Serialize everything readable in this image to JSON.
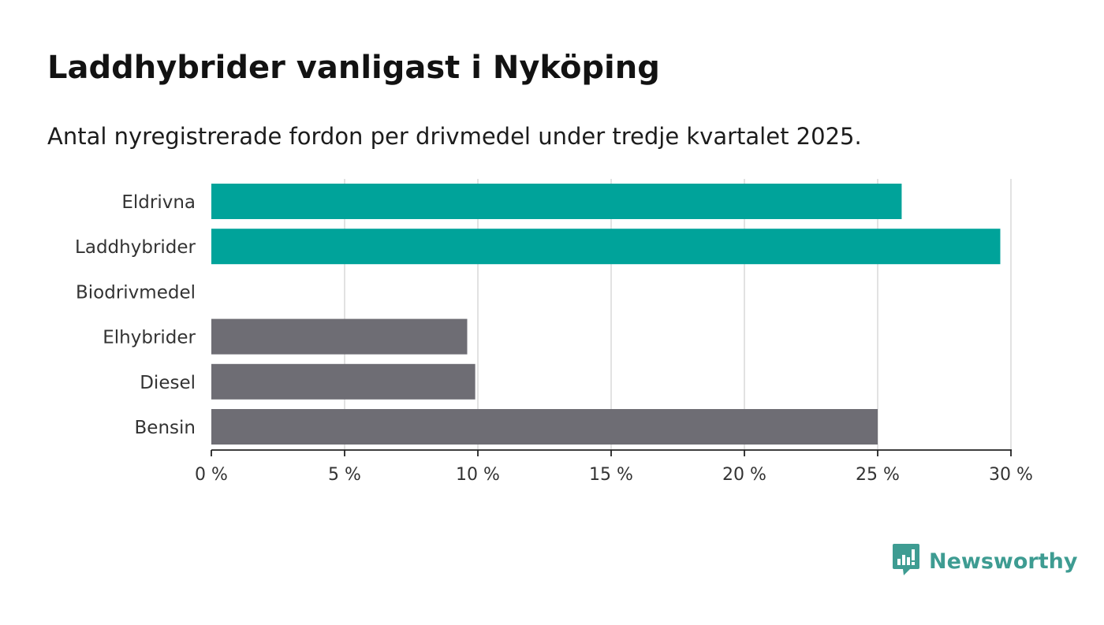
{
  "title": "Laddhybrider vanligast i Nyköping",
  "subtitle": "Antal nyregistrerade fordon per drivmedel under tredje kvartalet 2025.",
  "brand": {
    "name": "Newsworthy",
    "logo_icon": "bar-chart-speech-bubble-icon"
  },
  "colors": {
    "highlight": "#00a39a",
    "default": "#6e6d74",
    "grid": "#d9d9d9",
    "axis": "#222222",
    "brand": "#3e9c92"
  },
  "chart_data": {
    "type": "bar",
    "orientation": "horizontal",
    "categories": [
      "Eldrivna",
      "Laddhybrider",
      "Biodrivmedel",
      "Elhybrider",
      "Diesel",
      "Bensin"
    ],
    "values": [
      25.9,
      29.6,
      0,
      9.6,
      9.9,
      25.0
    ],
    "highlighted": [
      true,
      true,
      false,
      false,
      false,
      false
    ],
    "unit": "%",
    "xlim": [
      0,
      30
    ],
    "ticks": [
      0,
      5,
      10,
      15,
      20,
      25,
      30
    ],
    "tick_labels": [
      "0 %",
      "5 %",
      "10 %",
      "15 %",
      "20 %",
      "25 %",
      "30 %"
    ],
    "grid": true,
    "legend": "none",
    "xlabel": "",
    "ylabel": ""
  }
}
